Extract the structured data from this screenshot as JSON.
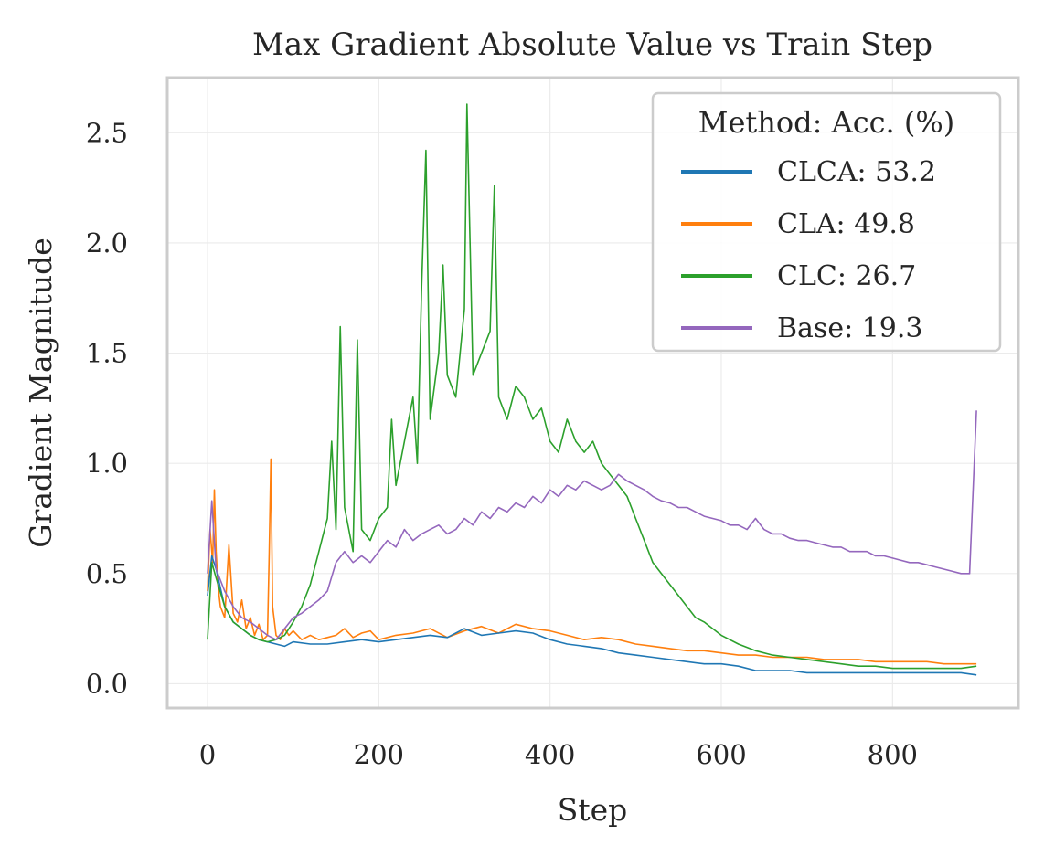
{
  "chart_data": {
    "type": "line",
    "title": "Max Gradient Absolute Value vs Train Step",
    "xlabel": "Step",
    "ylabel": "Gradient Magnitude",
    "xlim": [
      -47,
      947
    ],
    "ylim": [
      -0.11,
      2.75
    ],
    "xticks": [
      0,
      200,
      400,
      600,
      800
    ],
    "xtick_labels": [
      "0",
      "200",
      "400",
      "600",
      "800"
    ],
    "yticks": [
      0.0,
      0.5,
      1.0,
      1.5,
      2.0,
      2.5
    ],
    "ytick_labels": [
      "0.0",
      "0.5",
      "1.0",
      "1.5",
      "2.0",
      "2.5"
    ],
    "grid": true,
    "legend": {
      "title": "Method: Acc. (%)",
      "placement": "top-right"
    },
    "series": [
      {
        "name": "CLCA: 53.2",
        "color": "#1f77b4",
        "x": [
          0,
          5,
          10,
          20,
          30,
          40,
          50,
          60,
          70,
          80,
          90,
          100,
          120,
          140,
          160,
          180,
          200,
          220,
          240,
          260,
          280,
          300,
          320,
          340,
          360,
          380,
          400,
          420,
          440,
          460,
          480,
          500,
          520,
          540,
          560,
          580,
          600,
          620,
          640,
          660,
          680,
          700,
          720,
          740,
          760,
          780,
          800,
          820,
          840,
          860,
          880,
          898
        ],
        "y": [
          0.4,
          0.58,
          0.52,
          0.35,
          0.28,
          0.25,
          0.22,
          0.2,
          0.19,
          0.18,
          0.17,
          0.19,
          0.18,
          0.18,
          0.19,
          0.2,
          0.19,
          0.2,
          0.21,
          0.22,
          0.21,
          0.25,
          0.22,
          0.23,
          0.24,
          0.23,
          0.2,
          0.18,
          0.17,
          0.16,
          0.14,
          0.13,
          0.12,
          0.11,
          0.1,
          0.09,
          0.09,
          0.08,
          0.06,
          0.06,
          0.06,
          0.05,
          0.05,
          0.05,
          0.05,
          0.05,
          0.05,
          0.05,
          0.05,
          0.05,
          0.05,
          0.04
        ]
      },
      {
        "name": "CLA: 49.8",
        "color": "#ff7f0e",
        "x": [
          0,
          3,
          6,
          8,
          10,
          12,
          15,
          20,
          25,
          30,
          35,
          40,
          45,
          50,
          55,
          60,
          65,
          70,
          72,
          74,
          76,
          80,
          85,
          90,
          95,
          100,
          110,
          120,
          130,
          140,
          150,
          160,
          170,
          180,
          190,
          200,
          220,
          240,
          260,
          280,
          300,
          320,
          340,
          360,
          380,
          400,
          420,
          440,
          460,
          480,
          500,
          520,
          540,
          560,
          580,
          600,
          620,
          640,
          660,
          680,
          700,
          720,
          740,
          760,
          780,
          800,
          820,
          840,
          860,
          880,
          898
        ],
        "y": [
          0.42,
          0.7,
          0.55,
          0.88,
          0.6,
          0.45,
          0.35,
          0.3,
          0.63,
          0.32,
          0.28,
          0.38,
          0.25,
          0.3,
          0.22,
          0.27,
          0.2,
          0.22,
          0.6,
          1.02,
          0.35,
          0.22,
          0.2,
          0.25,
          0.22,
          0.24,
          0.2,
          0.22,
          0.2,
          0.21,
          0.22,
          0.25,
          0.21,
          0.23,
          0.24,
          0.2,
          0.22,
          0.23,
          0.25,
          0.21,
          0.24,
          0.26,
          0.23,
          0.27,
          0.25,
          0.24,
          0.22,
          0.2,
          0.21,
          0.2,
          0.18,
          0.17,
          0.16,
          0.15,
          0.15,
          0.14,
          0.13,
          0.13,
          0.12,
          0.12,
          0.12,
          0.11,
          0.11,
          0.11,
          0.1,
          0.1,
          0.1,
          0.1,
          0.09,
          0.09,
          0.09
        ]
      },
      {
        "name": "CLC: 26.7",
        "color": "#2ca02c",
        "x": [
          0,
          5,
          10,
          20,
          30,
          40,
          50,
          60,
          70,
          80,
          90,
          100,
          110,
          120,
          130,
          140,
          145,
          150,
          155,
          160,
          170,
          175,
          180,
          190,
          200,
          210,
          215,
          220,
          230,
          240,
          245,
          250,
          255,
          260,
          270,
          275,
          280,
          290,
          300,
          303,
          310,
          320,
          330,
          335,
          340,
          350,
          360,
          370,
          380,
          390,
          400,
          410,
          420,
          430,
          440,
          450,
          460,
          470,
          480,
          490,
          500,
          510,
          520,
          530,
          540,
          550,
          560,
          570,
          580,
          590,
          600,
          620,
          640,
          660,
          680,
          700,
          720,
          740,
          760,
          780,
          800,
          820,
          840,
          860,
          880,
          898
        ],
        "y": [
          0.2,
          0.55,
          0.48,
          0.35,
          0.28,
          0.25,
          0.22,
          0.2,
          0.19,
          0.2,
          0.22,
          0.28,
          0.35,
          0.45,
          0.6,
          0.75,
          1.1,
          0.7,
          1.62,
          0.8,
          0.6,
          1.56,
          0.7,
          0.65,
          0.75,
          0.8,
          1.2,
          0.9,
          1.1,
          1.3,
          1.0,
          1.8,
          2.42,
          1.2,
          1.5,
          1.9,
          1.4,
          1.3,
          1.7,
          2.63,
          1.4,
          1.5,
          1.6,
          2.26,
          1.3,
          1.2,
          1.35,
          1.3,
          1.2,
          1.25,
          1.1,
          1.05,
          1.2,
          1.1,
          1.05,
          1.1,
          1.0,
          0.95,
          0.9,
          0.85,
          0.75,
          0.65,
          0.55,
          0.5,
          0.45,
          0.4,
          0.35,
          0.3,
          0.28,
          0.25,
          0.22,
          0.18,
          0.15,
          0.13,
          0.12,
          0.11,
          0.1,
          0.09,
          0.08,
          0.08,
          0.07,
          0.07,
          0.07,
          0.07,
          0.07,
          0.08
        ]
      },
      {
        "name": "Base: 19.3",
        "color": "#9467bd",
        "x": [
          0,
          5,
          10,
          20,
          30,
          40,
          50,
          60,
          70,
          80,
          90,
          100,
          110,
          120,
          130,
          140,
          150,
          160,
          170,
          180,
          190,
          200,
          210,
          220,
          230,
          240,
          250,
          260,
          270,
          280,
          290,
          300,
          310,
          320,
          330,
          340,
          350,
          360,
          370,
          380,
          390,
          400,
          410,
          420,
          430,
          440,
          450,
          460,
          470,
          480,
          490,
          500,
          510,
          520,
          530,
          540,
          550,
          560,
          570,
          580,
          590,
          600,
          610,
          620,
          630,
          640,
          650,
          660,
          670,
          680,
          690,
          700,
          710,
          720,
          730,
          740,
          750,
          760,
          770,
          780,
          790,
          800,
          810,
          820,
          830,
          840,
          850,
          860,
          870,
          880,
          890,
          898
        ],
        "y": [
          0.5,
          0.83,
          0.52,
          0.42,
          0.35,
          0.3,
          0.28,
          0.25,
          0.22,
          0.2,
          0.25,
          0.3,
          0.32,
          0.35,
          0.38,
          0.42,
          0.55,
          0.6,
          0.55,
          0.58,
          0.55,
          0.6,
          0.65,
          0.62,
          0.7,
          0.65,
          0.68,
          0.7,
          0.72,
          0.68,
          0.7,
          0.75,
          0.72,
          0.78,
          0.75,
          0.8,
          0.78,
          0.82,
          0.8,
          0.85,
          0.82,
          0.88,
          0.85,
          0.9,
          0.88,
          0.92,
          0.9,
          0.88,
          0.9,
          0.95,
          0.92,
          0.9,
          0.88,
          0.85,
          0.83,
          0.82,
          0.8,
          0.8,
          0.78,
          0.76,
          0.75,
          0.74,
          0.72,
          0.72,
          0.7,
          0.75,
          0.7,
          0.68,
          0.68,
          0.66,
          0.65,
          0.65,
          0.64,
          0.63,
          0.62,
          0.62,
          0.6,
          0.6,
          0.6,
          0.58,
          0.58,
          0.57,
          0.56,
          0.55,
          0.55,
          0.54,
          0.53,
          0.52,
          0.51,
          0.5,
          0.5,
          1.24
        ]
      }
    ]
  }
}
